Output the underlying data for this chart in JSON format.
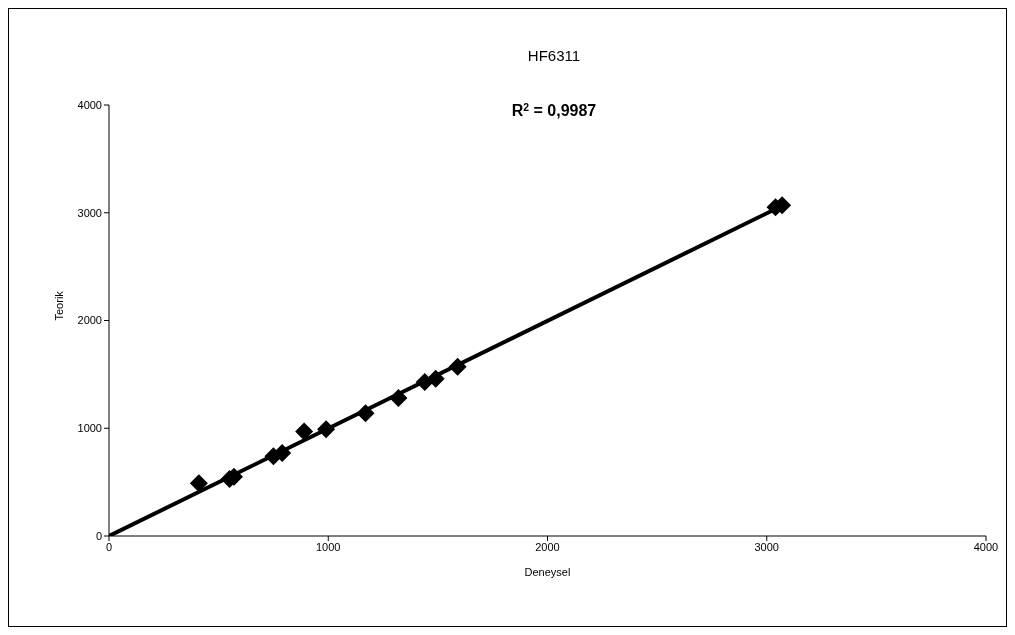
{
  "chart_data": {
    "type": "scatter",
    "title": "HF6311",
    "xlabel": "Deneysel",
    "ylabel": "Teorik",
    "annotations": [
      "R$^{2}$ = 0,9987"
    ],
    "xlim": [
      0,
      4000
    ],
    "xticks": [
      0,
      1000,
      2000,
      3000,
      4000
    ],
    "ylim": [
      0,
      4000
    ],
    "yticks": [
      0,
      1000,
      2000,
      3000,
      4000
    ],
    "series": [
      {
        "color": "#000000",
        "marker": "diamond",
        "x": [
          410,
          550,
          570,
          750,
          790,
          890,
          990,
          1170,
          1320,
          1440,
          1490,
          1590,
          3040,
          3070
        ],
        "values": [
          490,
          530,
          550,
          740,
          770,
          970,
          990,
          1140,
          1280,
          1430,
          1460,
          1570,
          3050,
          3070
        ]
      },
      {
        "type": "line",
        "color": "#000000",
        "marker": "none",
        "x": [
          0,
          3075
        ],
        "values": [
          0,
          3070
        ]
      }
    ]
  }
}
